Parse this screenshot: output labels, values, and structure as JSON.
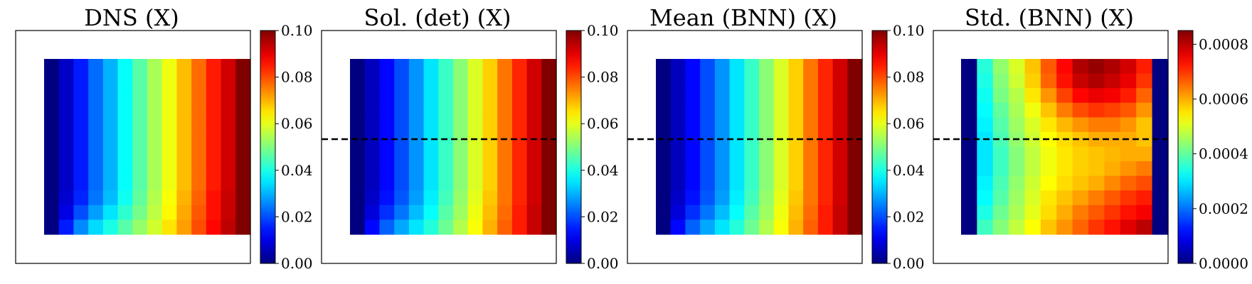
{
  "chart_data": [
    {
      "type": "heatmap",
      "title": "DNS (X)",
      "colormap": "jet",
      "vmin": 0.0,
      "vmax": 0.1,
      "colorbar_ticks": [
        "0.00",
        "0.02",
        "0.04",
        "0.06",
        "0.08",
        "0.10"
      ],
      "colorbar_tick_values": [
        0.0,
        0.02,
        0.04,
        0.06,
        0.08,
        0.1
      ],
      "dashed_line": false,
      "grid": [
        [
          0.0,
          0.007,
          0.015,
          0.023,
          0.03,
          0.038,
          0.046,
          0.054,
          0.061,
          0.069,
          0.077,
          0.085,
          0.092,
          0.1
        ],
        [
          0.0,
          0.007,
          0.015,
          0.023,
          0.03,
          0.038,
          0.046,
          0.054,
          0.061,
          0.069,
          0.077,
          0.085,
          0.092,
          0.1
        ],
        [
          0.0,
          0.007,
          0.015,
          0.023,
          0.03,
          0.038,
          0.046,
          0.054,
          0.061,
          0.069,
          0.077,
          0.085,
          0.092,
          0.1
        ],
        [
          0.0,
          0.007,
          0.015,
          0.023,
          0.03,
          0.038,
          0.046,
          0.054,
          0.061,
          0.069,
          0.077,
          0.085,
          0.092,
          0.1
        ],
        [
          0.0,
          0.007,
          0.015,
          0.023,
          0.03,
          0.038,
          0.046,
          0.054,
          0.061,
          0.069,
          0.077,
          0.085,
          0.092,
          0.1
        ],
        [
          0.0,
          0.007,
          0.015,
          0.023,
          0.03,
          0.038,
          0.046,
          0.054,
          0.061,
          0.069,
          0.077,
          0.085,
          0.092,
          0.1
        ],
        [
          0.0,
          0.007,
          0.015,
          0.023,
          0.03,
          0.038,
          0.046,
          0.054,
          0.061,
          0.069,
          0.077,
          0.085,
          0.092,
          0.1
        ],
        [
          0.0,
          0.007,
          0.015,
          0.023,
          0.03,
          0.038,
          0.046,
          0.054,
          0.061,
          0.069,
          0.077,
          0.085,
          0.092,
          0.1
        ],
        [
          0.0,
          0.007,
          0.015,
          0.023,
          0.03,
          0.038,
          0.046,
          0.054,
          0.061,
          0.069,
          0.077,
          0.085,
          0.092,
          0.1
        ],
        [
          0.0,
          0.008,
          0.016,
          0.024,
          0.031,
          0.039,
          0.047,
          0.055,
          0.062,
          0.07,
          0.078,
          0.086,
          0.093,
          0.1
        ],
        [
          0.0,
          0.01,
          0.02,
          0.028,
          0.035,
          0.042,
          0.049,
          0.056,
          0.063,
          0.071,
          0.079,
          0.086,
          0.093,
          0.1
        ],
        [
          0.0,
          0.015,
          0.026,
          0.034,
          0.04,
          0.046,
          0.052,
          0.058,
          0.065,
          0.072,
          0.08,
          0.087,
          0.094,
          0.1
        ]
      ]
    },
    {
      "type": "heatmap",
      "title": "Sol. (det) (X)",
      "colormap": "jet",
      "vmin": 0.0,
      "vmax": 0.1,
      "colorbar_ticks": [
        "0.00",
        "0.02",
        "0.04",
        "0.06",
        "0.08",
        "0.10"
      ],
      "colorbar_tick_values": [
        0.0,
        0.02,
        0.04,
        0.06,
        0.08,
        0.1
      ],
      "dashed_line": true,
      "grid": [
        [
          0.0,
          0.006,
          0.013,
          0.02,
          0.027,
          0.035,
          0.043,
          0.051,
          0.059,
          0.067,
          0.076,
          0.084,
          0.092,
          0.1
        ],
        [
          0.0,
          0.006,
          0.013,
          0.02,
          0.027,
          0.035,
          0.043,
          0.051,
          0.059,
          0.067,
          0.076,
          0.084,
          0.092,
          0.1
        ],
        [
          0.0,
          0.006,
          0.013,
          0.02,
          0.027,
          0.035,
          0.043,
          0.051,
          0.059,
          0.067,
          0.076,
          0.084,
          0.092,
          0.1
        ],
        [
          0.0,
          0.006,
          0.013,
          0.02,
          0.027,
          0.035,
          0.043,
          0.051,
          0.059,
          0.067,
          0.076,
          0.084,
          0.092,
          0.1
        ],
        [
          0.0,
          0.006,
          0.013,
          0.02,
          0.027,
          0.035,
          0.043,
          0.051,
          0.059,
          0.067,
          0.076,
          0.084,
          0.092,
          0.1
        ],
        [
          0.0,
          0.006,
          0.013,
          0.02,
          0.027,
          0.035,
          0.043,
          0.051,
          0.059,
          0.067,
          0.076,
          0.084,
          0.092,
          0.1
        ],
        [
          0.0,
          0.006,
          0.013,
          0.02,
          0.027,
          0.035,
          0.043,
          0.051,
          0.059,
          0.067,
          0.076,
          0.084,
          0.092,
          0.1
        ],
        [
          0.0,
          0.006,
          0.013,
          0.02,
          0.027,
          0.035,
          0.043,
          0.051,
          0.059,
          0.067,
          0.076,
          0.084,
          0.092,
          0.1
        ],
        [
          0.0,
          0.006,
          0.013,
          0.02,
          0.027,
          0.035,
          0.043,
          0.051,
          0.059,
          0.067,
          0.076,
          0.084,
          0.092,
          0.1
        ],
        [
          0.0,
          0.007,
          0.014,
          0.021,
          0.028,
          0.036,
          0.044,
          0.052,
          0.06,
          0.068,
          0.076,
          0.084,
          0.092,
          0.1
        ],
        [
          0.0,
          0.009,
          0.017,
          0.024,
          0.031,
          0.038,
          0.046,
          0.053,
          0.061,
          0.069,
          0.077,
          0.085,
          0.093,
          0.1
        ],
        [
          0.0,
          0.013,
          0.022,
          0.029,
          0.035,
          0.041,
          0.048,
          0.055,
          0.062,
          0.07,
          0.078,
          0.085,
          0.093,
          0.1
        ]
      ]
    },
    {
      "type": "heatmap",
      "title": "Mean (BNN) (X)",
      "colormap": "jet",
      "vmin": 0.0,
      "vmax": 0.1,
      "colorbar_ticks": [
        "0.00",
        "0.02",
        "0.04",
        "0.06",
        "0.08",
        "0.10"
      ],
      "colorbar_tick_values": [
        0.0,
        0.02,
        0.04,
        0.06,
        0.08,
        0.1
      ],
      "dashed_line": true,
      "grid": [
        [
          0.0,
          0.006,
          0.013,
          0.02,
          0.027,
          0.035,
          0.043,
          0.051,
          0.059,
          0.067,
          0.076,
          0.084,
          0.092,
          0.1
        ],
        [
          0.0,
          0.006,
          0.013,
          0.02,
          0.027,
          0.035,
          0.043,
          0.051,
          0.059,
          0.067,
          0.076,
          0.084,
          0.092,
          0.1
        ],
        [
          0.0,
          0.006,
          0.013,
          0.02,
          0.027,
          0.035,
          0.043,
          0.051,
          0.059,
          0.067,
          0.076,
          0.084,
          0.092,
          0.1
        ],
        [
          0.0,
          0.006,
          0.013,
          0.02,
          0.027,
          0.035,
          0.043,
          0.051,
          0.059,
          0.067,
          0.076,
          0.084,
          0.092,
          0.1
        ],
        [
          0.0,
          0.006,
          0.013,
          0.02,
          0.027,
          0.035,
          0.043,
          0.051,
          0.059,
          0.067,
          0.076,
          0.084,
          0.092,
          0.1
        ],
        [
          0.0,
          0.006,
          0.013,
          0.02,
          0.027,
          0.035,
          0.043,
          0.051,
          0.059,
          0.067,
          0.076,
          0.084,
          0.092,
          0.1
        ],
        [
          0.0,
          0.006,
          0.013,
          0.02,
          0.027,
          0.035,
          0.043,
          0.051,
          0.059,
          0.067,
          0.076,
          0.084,
          0.092,
          0.1
        ],
        [
          0.0,
          0.006,
          0.013,
          0.02,
          0.027,
          0.035,
          0.043,
          0.051,
          0.059,
          0.067,
          0.076,
          0.084,
          0.092,
          0.1
        ],
        [
          0.0,
          0.006,
          0.013,
          0.02,
          0.027,
          0.035,
          0.043,
          0.051,
          0.059,
          0.067,
          0.076,
          0.084,
          0.092,
          0.1
        ],
        [
          0.0,
          0.007,
          0.014,
          0.021,
          0.028,
          0.036,
          0.044,
          0.052,
          0.06,
          0.068,
          0.076,
          0.084,
          0.092,
          0.1
        ],
        [
          0.0,
          0.009,
          0.017,
          0.024,
          0.031,
          0.038,
          0.046,
          0.053,
          0.061,
          0.069,
          0.077,
          0.085,
          0.093,
          0.1
        ],
        [
          0.0,
          0.013,
          0.022,
          0.029,
          0.035,
          0.041,
          0.048,
          0.055,
          0.062,
          0.07,
          0.078,
          0.085,
          0.093,
          0.1
        ]
      ]
    },
    {
      "type": "heatmap",
      "title": "Std. (BNN) (X)",
      "colormap": "jet",
      "vmin": 0.0,
      "vmax": 0.00085,
      "colorbar_ticks": [
        "0.0000",
        "0.0002",
        "0.0004",
        "0.0006",
        "0.0008"
      ],
      "colorbar_tick_values": [
        0.0,
        0.0002,
        0.0004,
        0.0006,
        0.0008
      ],
      "dashed_line": true,
      "grid": [
        [
          0.0,
          0.00035,
          0.00044,
          0.0005,
          0.00058,
          0.00067,
          0.00074,
          0.00081,
          0.00083,
          0.00081,
          0.00078,
          0.00072,
          0.0
        ],
        [
          0.0,
          0.00034,
          0.00043,
          0.00049,
          0.00057,
          0.00066,
          0.00073,
          0.00079,
          0.00081,
          0.00079,
          0.00076,
          0.0007,
          0.0
        ],
        [
          0.0,
          0.00033,
          0.00042,
          0.00047,
          0.00055,
          0.00062,
          0.00069,
          0.00074,
          0.00076,
          0.00075,
          0.00072,
          0.00066,
          0.0
        ],
        [
          0.0,
          0.00032,
          0.0004,
          0.00046,
          0.00052,
          0.00058,
          0.00064,
          0.00068,
          0.0007,
          0.00069,
          0.00067,
          0.00062,
          0.0
        ],
        [
          0.0,
          0.00031,
          0.00039,
          0.00045,
          0.0005,
          0.00055,
          0.00059,
          0.00062,
          0.00064,
          0.00064,
          0.00062,
          0.00058,
          0.0
        ],
        [
          0.0,
          0.0003,
          0.00038,
          0.00044,
          0.00049,
          0.00053,
          0.00056,
          0.00058,
          0.0006,
          0.0006,
          0.0006,
          0.00058,
          0.0
        ],
        [
          0.0,
          0.0003,
          0.00037,
          0.00043,
          0.00048,
          0.00052,
          0.00055,
          0.00057,
          0.00058,
          0.00059,
          0.0006,
          0.0006,
          0.0
        ],
        [
          0.0,
          0.0003,
          0.00037,
          0.00043,
          0.00048,
          0.00052,
          0.00055,
          0.00057,
          0.00058,
          0.0006,
          0.00062,
          0.00064,
          0.0
        ],
        [
          0.0,
          0.00031,
          0.00038,
          0.00044,
          0.00049,
          0.00053,
          0.00056,
          0.00058,
          0.0006,
          0.00063,
          0.00066,
          0.00068,
          0.0
        ],
        [
          0.0,
          0.00032,
          0.00039,
          0.00045,
          0.0005,
          0.00055,
          0.00058,
          0.00061,
          0.00064,
          0.00067,
          0.0007,
          0.00072,
          0.0
        ],
        [
          0.0,
          0.00034,
          0.00041,
          0.00046,
          0.00051,
          0.00056,
          0.0006,
          0.00064,
          0.00067,
          0.0007,
          0.00073,
          0.00075,
          0.0
        ],
        [
          0.0,
          0.00037,
          0.00043,
          0.00048,
          0.00053,
          0.00058,
          0.00062,
          0.00066,
          0.0007,
          0.00073,
          0.00077,
          0.0008,
          0.0
        ]
      ]
    }
  ]
}
